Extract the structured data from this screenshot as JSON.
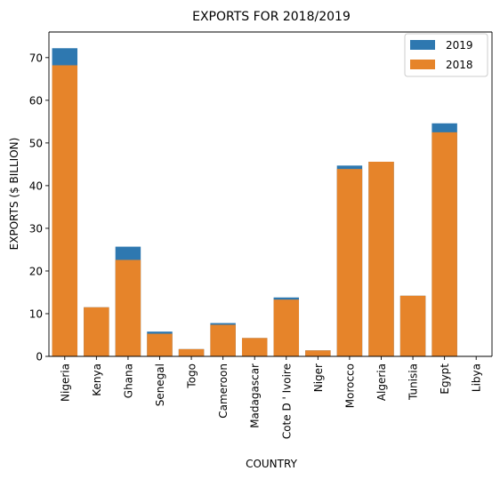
{
  "chart_data": {
    "type": "bar",
    "title": "EXPORTS FOR 2018/2019",
    "xlabel": "COUNTRY",
    "ylabel": "EXPORTS ($ BILLION)",
    "ylim": [
      0,
      76
    ],
    "yticks": [
      0,
      10,
      20,
      30,
      40,
      50,
      60,
      70
    ],
    "grid": false,
    "legend_position": "top-right",
    "overlay": true,
    "categories": [
      "Nigeria",
      "Kenya",
      "Ghana",
      "Senegal",
      "Togo",
      "Cameroon",
      "Madagascar",
      "Cote D ' Ivoire",
      "Niger",
      "Morocco",
      "Algeria",
      "Tunisia",
      "Egypt",
      "Libya"
    ],
    "series": [
      {
        "name": "2019",
        "color": "#2e78b0",
        "values": [
          72.2,
          11.5,
          25.7,
          5.8,
          1.7,
          7.8,
          4.3,
          13.8,
          1.4,
          44.7,
          45.6,
          14.2,
          54.6,
          0
        ]
      },
      {
        "name": "2018",
        "color": "#e6842a",
        "values": [
          68.2,
          11.5,
          22.6,
          5.3,
          1.7,
          7.4,
          4.3,
          13.3,
          1.4,
          43.9,
          45.6,
          14.2,
          52.5,
          0
        ]
      }
    ]
  }
}
